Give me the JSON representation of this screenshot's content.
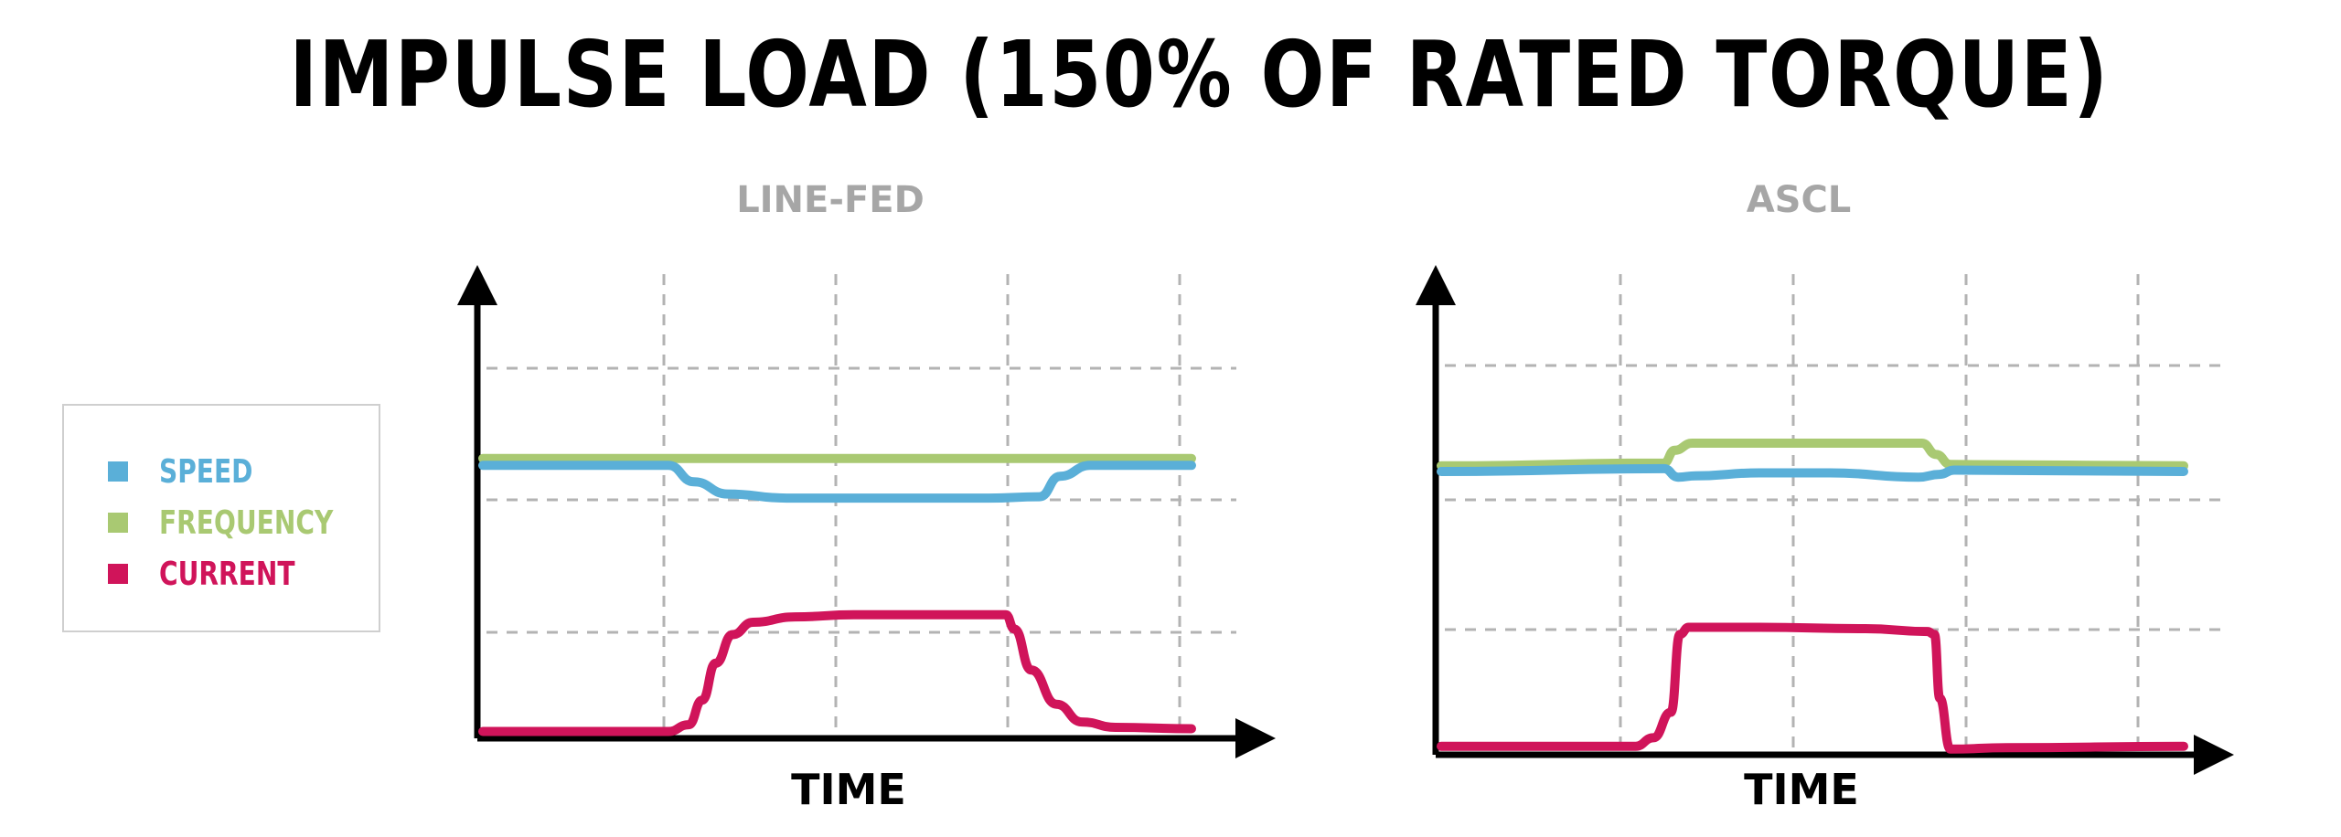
{
  "title": "IMPULSE LOAD (150% OF RATED TORQUE)",
  "colors": {
    "speed": "#5aafd8",
    "frequency": "#a9c972",
    "current": "#d0145a",
    "grid": "#b3b3b3",
    "panel_title": "#a6a6a6"
  },
  "legend": [
    {
      "label": "SPEED",
      "color": "#5aafd8"
    },
    {
      "label": "FREQUENCY",
      "color": "#a9c972"
    },
    {
      "label": "CURRENT",
      "color": "#d0145a"
    }
  ],
  "chart_data": [
    {
      "type": "line",
      "title": "LINE-FED",
      "xlabel": "TIME",
      "ylabel": "",
      "grid": true,
      "xlim": [
        0,
        4.2
      ],
      "ylim": [
        0,
        3.2
      ],
      "series": [
        {
          "name": "FREQUENCY",
          "color": "#a9c972",
          "x": [
            0,
            4.2
          ],
          "y": [
            2.05,
            2.05
          ]
        },
        {
          "name": "SPEED",
          "color": "#5aafd8",
          "x": [
            0,
            1.1,
            1.25,
            1.45,
            1.8,
            3.0,
            3.3,
            3.42,
            3.6,
            4.2
          ],
          "y": [
            2.0,
            2.0,
            1.88,
            1.79,
            1.76,
            1.76,
            1.77,
            1.92,
            2.0,
            2.0
          ]
        },
        {
          "name": "CURRENT",
          "color": "#d0145a",
          "x": [
            0,
            1.1,
            1.22,
            1.3,
            1.38,
            1.48,
            1.6,
            1.85,
            2.2,
            2.8,
            3.1,
            3.15,
            3.25,
            3.4,
            3.55,
            3.75,
            4.2
          ],
          "y": [
            0.05,
            0.05,
            0.1,
            0.28,
            0.55,
            0.76,
            0.85,
            0.89,
            0.905,
            0.905,
            0.905,
            0.8,
            0.5,
            0.25,
            0.12,
            0.08,
            0.07
          ]
        }
      ]
    },
    {
      "type": "line",
      "title": "ASCL",
      "xlabel": "TIME",
      "ylabel": "",
      "grid": true,
      "xlim": [
        0,
        4.2
      ],
      "ylim": [
        0,
        3.2
      ],
      "series": [
        {
          "name": "FREQUENCY",
          "color": "#a9c972",
          "x": [
            0,
            1.26,
            1.32,
            1.42,
            2.72,
            2.8,
            2.88,
            4.2
          ],
          "y": [
            2.04,
            2.06,
            2.15,
            2.2,
            2.2,
            2.12,
            2.05,
            2.04
          ]
        },
        {
          "name": "SPEED",
          "color": "#5aafd8",
          "x": [
            0,
            1.26,
            1.34,
            1.44,
            1.8,
            2.2,
            2.7,
            2.82,
            2.9,
            4.2
          ],
          "y": [
            2.0,
            2.02,
            1.96,
            1.97,
            1.99,
            1.99,
            1.96,
            1.98,
            2.01,
            2.0
          ]
        },
        {
          "name": "CURRENT",
          "color": "#d0145a",
          "x": [
            0,
            1.1,
            1.2,
            1.3,
            1.35,
            1.4,
            1.8,
            2.4,
            2.75,
            2.79,
            2.82,
            2.88,
            3.2,
            4.2
          ],
          "y": [
            0.06,
            0.06,
            0.12,
            0.3,
            0.85,
            0.9,
            0.9,
            0.89,
            0.87,
            0.85,
            0.4,
            0.04,
            0.05,
            0.06
          ]
        }
      ]
    }
  ]
}
